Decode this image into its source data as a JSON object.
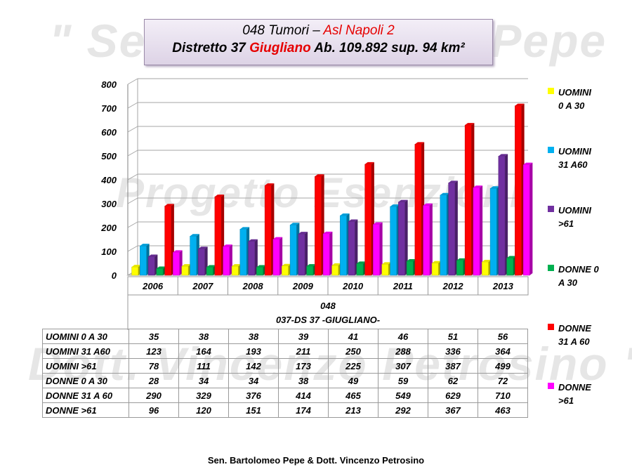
{
  "watermarks": [
    "\" Sen. Bartolomeo Pepe",
    "Progetto Esenzioni",
    "Dott. Vincenzo Petrosino \""
  ],
  "title": {
    "line1_prefix": "048  Tumori – ",
    "line1_highlight": "Asl Napoli 2",
    "line2_prefix": "Distretto 37 ",
    "line2_highlight": "Giugliano",
    "line2_suffix": " Ab. 109.892  sup. 94 km²"
  },
  "chart_data": {
    "type": "bar",
    "categories": [
      "2006",
      "2007",
      "2008",
      "2009",
      "2010",
      "2011",
      "2012",
      "2013"
    ],
    "category_group_labels": [
      "048",
      "037-DS 37 -GIUGLIANO-"
    ],
    "ylim": [
      0,
      800
    ],
    "yticks": [
      "0",
      "100",
      "200",
      "300",
      "400",
      "500",
      "600",
      "700",
      "800"
    ],
    "grid": true,
    "legend_position": "right",
    "series": [
      {
        "name": "UOMINI 0 A 30",
        "legend_lines": [
          "UOMINI",
          "0 A 30"
        ],
        "color": "#ffff00",
        "values": [
          35,
          38,
          38,
          39,
          41,
          46,
          51,
          56
        ]
      },
      {
        "name": "UOMINI 31 A60",
        "legend_lines": [
          "UOMINI",
          "31 A60"
        ],
        "color": "#00b0f0",
        "values": [
          123,
          164,
          193,
          211,
          250,
          288,
          336,
          364
        ]
      },
      {
        "name": "UOMINI >61",
        "legend_lines": [
          "UOMINI",
          ">61"
        ],
        "color": "#7030a0",
        "values": [
          78,
          111,
          142,
          173,
          225,
          307,
          387,
          499
        ]
      },
      {
        "name": "DONNE 0 A 30",
        "legend_lines": [
          "DONNE 0",
          "A 30"
        ],
        "color": "#00b050",
        "values": [
          28,
          34,
          34,
          38,
          49,
          59,
          62,
          72
        ]
      },
      {
        "name": "DONNE 31 A 60",
        "legend_lines": [
          "DONNE",
          "31 A 60"
        ],
        "color": "#ff0000",
        "values": [
          290,
          329,
          376,
          414,
          465,
          549,
          629,
          710
        ]
      },
      {
        "name": "DONNE >61",
        "legend_lines": [
          "DONNE",
          ">61"
        ],
        "color": "#ff00ff",
        "values": [
          96,
          120,
          151,
          174,
          213,
          292,
          367,
          463
        ]
      }
    ]
  },
  "footer": "Sen. Bartolomeo Pepe & Dott. Vincenzo Petrosino"
}
